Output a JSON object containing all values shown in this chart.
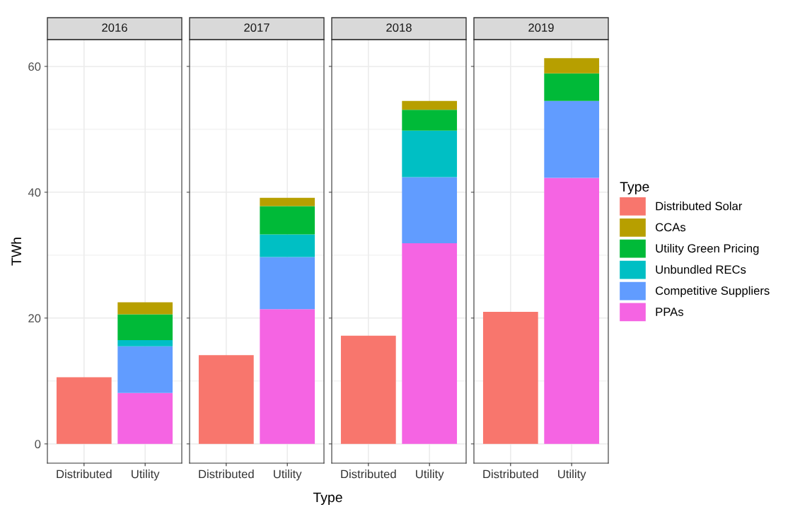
{
  "chart_data": [
    {
      "type": "bar",
      "title": "2016",
      "ylabel": "TWh",
      "categories": [
        "Distributed",
        "Utility"
      ],
      "stacked": true,
      "ylim": [
        -3.06,
        64.26
      ],
      "yticks": [
        0,
        20,
        40,
        60
      ],
      "grid": true,
      "series": [
        {
          "color": "#f8766d",
          "values": [
            10.6,
            null
          ]
        },
        {
          "color": "#f564e3",
          "values": [
            null,
            8.1
          ]
        },
        {
          "color": "#619cff",
          "values": [
            null,
            7.4
          ]
        },
        {
          "color": "#00bfc4",
          "values": [
            null,
            1.0
          ]
        },
        {
          "color": "#00ba38",
          "values": [
            null,
            4.1
          ]
        },
        {
          "color": "#b79f00",
          "values": [
            null,
            1.9
          ]
        }
      ]
    },
    {
      "type": "bar",
      "title": "2017",
      "xlabel": "Type",
      "categories": [
        "Distributed",
        "Utility"
      ],
      "stacked": true,
      "ylim": [
        -3.06,
        64.26
      ],
      "yticks": [
        0,
        20,
        40,
        60
      ],
      "tick_labels": "x",
      "grid": true,
      "series": [
        {
          "color": "#f8766d",
          "values": [
            14.1,
            null
          ]
        },
        {
          "color": "#f564e3",
          "values": [
            null,
            21.4
          ]
        },
        {
          "color": "#619cff",
          "values": [
            null,
            8.3
          ]
        },
        {
          "color": "#00bfc4",
          "values": [
            null,
            3.6
          ]
        },
        {
          "color": "#00ba38",
          "values": [
            null,
            4.5
          ]
        },
        {
          "color": "#b79f00",
          "values": [
            null,
            1.3
          ]
        }
      ]
    },
    {
      "type": "bar",
      "title": "2018",
      "categories": [
        "Distributed",
        "Utility"
      ],
      "stacked": true,
      "ylim": [
        -3.06,
        64.26
      ],
      "yticks": [
        0,
        20,
        40,
        60
      ],
      "tick_labels": "x",
      "grid": true,
      "series": [
        {
          "color": "#f8766d",
          "values": [
            17.2,
            null
          ]
        },
        {
          "color": "#f564e3",
          "values": [
            null,
            31.9
          ]
        },
        {
          "color": "#619cff",
          "values": [
            null,
            10.5
          ]
        },
        {
          "color": "#00bfc4",
          "values": [
            null,
            7.4
          ]
        },
        {
          "color": "#00ba38",
          "values": [
            null,
            3.3
          ]
        },
        {
          "color": "#b79f00",
          "values": [
            null,
            1.4
          ]
        }
      ]
    },
    {
      "type": "bar",
      "title": "2019",
      "categories": [
        "Distributed",
        "Utility"
      ],
      "stacked": true,
      "ylim": [
        -3.06,
        64.26
      ],
      "yticks": [
        0,
        20,
        40,
        60
      ],
      "tick_labels": "x",
      "grid": true,
      "legend": "right",
      "legend_title": "Type",
      "series": [
        {
          "name": "Distributed Solar",
          "color": "#f8766d",
          "values": [
            21.0,
            null
          ]
        },
        {
          "name": "PPAs",
          "color": "#f564e3",
          "values": [
            null,
            42.3
          ]
        },
        {
          "name": "Competitive Suppliers",
          "color": "#619cff",
          "values": [
            null,
            12.2
          ]
        },
        {
          "name": "Unbundled RECs",
          "color": "#00bfc4",
          "values": [
            null,
            null
          ]
        },
        {
          "name": "Utility Green Pricing",
          "color": "#00ba38",
          "values": [
            null,
            4.4
          ]
        },
        {
          "name": "CCAs",
          "color": "#b79f00",
          "values": [
            null,
            2.4
          ]
        }
      ]
    }
  ]
}
